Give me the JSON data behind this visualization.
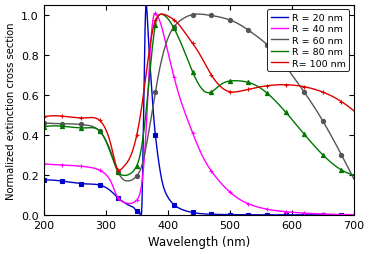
{
  "title": "",
  "xlabel": "Wavelength (nm)",
  "ylabel": "Normalized extinction cross section",
  "xlim": [
    200,
    700
  ],
  "ylim": [
    0,
    1.05
  ],
  "yticks": [
    0,
    0.2,
    0.4,
    0.6,
    0.8,
    1.0
  ],
  "xticks": [
    200,
    300,
    400,
    500,
    600,
    700
  ],
  "colors": {
    "R20": "#0000cc",
    "R40": "#ff00ff",
    "R60": "#555555",
    "R80": "#007700",
    "R100": "#dd0000"
  },
  "legend": [
    "R = 20 nm",
    "R = 40 nm",
    "R = 60 nm",
    "R = 80 nm",
    "R= 100 nm"
  ]
}
